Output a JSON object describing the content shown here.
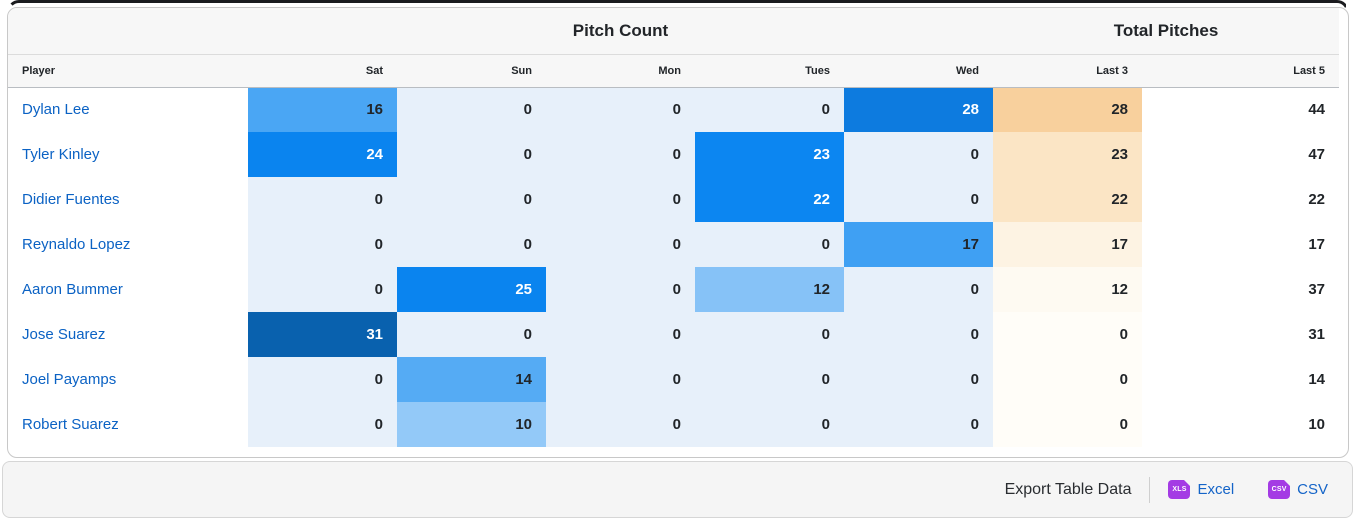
{
  "table": {
    "group_headers": {
      "pitch_count": "Pitch Count",
      "total_pitches": "Total Pitches"
    },
    "columns": [
      "Player",
      "Sat",
      "Sun",
      "Mon",
      "Tues",
      "Wed",
      "Last 3",
      "Last 5"
    ],
    "rows": [
      {
        "player": "Dylan Lee",
        "days": [
          16,
          0,
          0,
          0,
          28
        ],
        "last3": 28,
        "last5": 44
      },
      {
        "player": "Tyler Kinley",
        "days": [
          24,
          0,
          0,
          23,
          0
        ],
        "last3": 23,
        "last5": 47
      },
      {
        "player": "Didier Fuentes",
        "days": [
          0,
          0,
          0,
          22,
          0
        ],
        "last3": 22,
        "last5": 22
      },
      {
        "player": "Reynaldo Lopez",
        "days": [
          0,
          0,
          0,
          0,
          17
        ],
        "last3": 17,
        "last5": 17
      },
      {
        "player": "Aaron Bummer",
        "days": [
          0,
          25,
          0,
          12,
          0
        ],
        "last3": 12,
        "last5": 37
      },
      {
        "player": "Jose Suarez",
        "days": [
          31,
          0,
          0,
          0,
          0
        ],
        "last3": 0,
        "last5": 31
      },
      {
        "player": "Joel Payamps",
        "days": [
          0,
          14,
          0,
          0,
          0
        ],
        "last3": 0,
        "last5": 14
      },
      {
        "player": "Robert Suarez",
        "days": [
          0,
          10,
          0,
          0,
          0
        ],
        "last3": 0,
        "last5": 10
      }
    ]
  },
  "heatmap": {
    "day_scale": {
      "0": "#e7f0fa",
      "10": "#93c9f8",
      "12": "#86c2f7",
      "14": "#55abf4",
      "16": "#4aa6f4",
      "17": "#3fa0f3",
      "22": "#0c86f1",
      "23": "#0c86f1",
      "24": "#0a84ef",
      "25": "#0a84ef",
      "28": "#0d7bdf",
      "31": "#0961ae"
    },
    "day_white_text_min": 22,
    "last3_scale": {
      "0": "#fffdf8",
      "12": "#fefaf2",
      "17": "#fdf3e3",
      "22": "#fbe5c5",
      "23": "#fbe5c5",
      "28": "#f8d09d"
    }
  },
  "footer": {
    "export_label": "Export Table Data",
    "excel_label": "Excel",
    "csv_label": "CSV",
    "xls_icon_text": "XLS",
    "csv_icon_text": "CSV"
  },
  "colors": {
    "player_link": "#0b62c4",
    "export_link": "#1464c8",
    "file_icon_purple": "#a43be4",
    "top_accent": "#1a1b1e"
  }
}
